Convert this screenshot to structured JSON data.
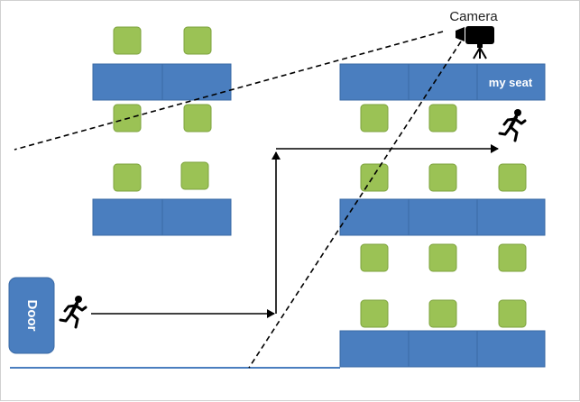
{
  "labels": {
    "camera": "Camera",
    "my_seat": "my seat",
    "door": "Door"
  },
  "icons": {
    "camera": "camera-icon",
    "runner": "running-person-icon"
  },
  "colors": {
    "desk": "#4a7ebf",
    "chair": "#9bc255",
    "door": "#4a7ebf",
    "floor_line": "#4a7ebf"
  }
}
